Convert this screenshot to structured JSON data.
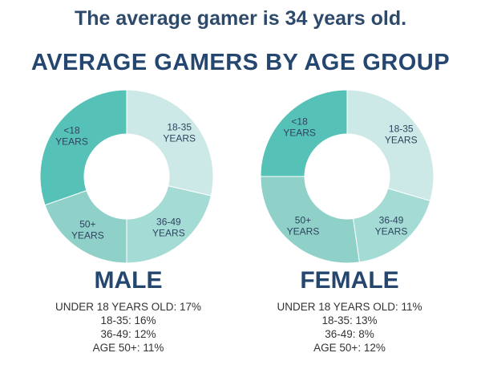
{
  "subtitle": "The average gamer is 34 years old.",
  "title": "AVERAGE GAMERS BY AGE GROUP",
  "colors": [
    "#56c1b6",
    "#cde9e7",
    "#a5dbd5",
    "#8fd1c9"
  ],
  "chart_data": [
    {
      "type": "pie",
      "name": "MALE",
      "categories": [
        "<18 YEARS",
        "18-35 YEARS",
        "36-49 YEARS",
        "50+ YEARS"
      ],
      "values": [
        17,
        16,
        12,
        11
      ],
      "stats": [
        "UNDER 18 YEARS OLD: 17%",
        "18-35: 16%",
        "36-49: 12%",
        "AGE 50+: 11%"
      ]
    },
    {
      "type": "pie",
      "name": "FEMALE",
      "categories": [
        "<18 YEARS",
        "18-35 YEARS",
        "36-49 YEARS",
        "50+ YEARS"
      ],
      "values": [
        11,
        13,
        8,
        12
      ],
      "stats": [
        "UNDER 18 YEARS OLD: 11%",
        "18-35: 13%",
        "36-49: 8%",
        "AGE 50+: 12%"
      ]
    }
  ]
}
